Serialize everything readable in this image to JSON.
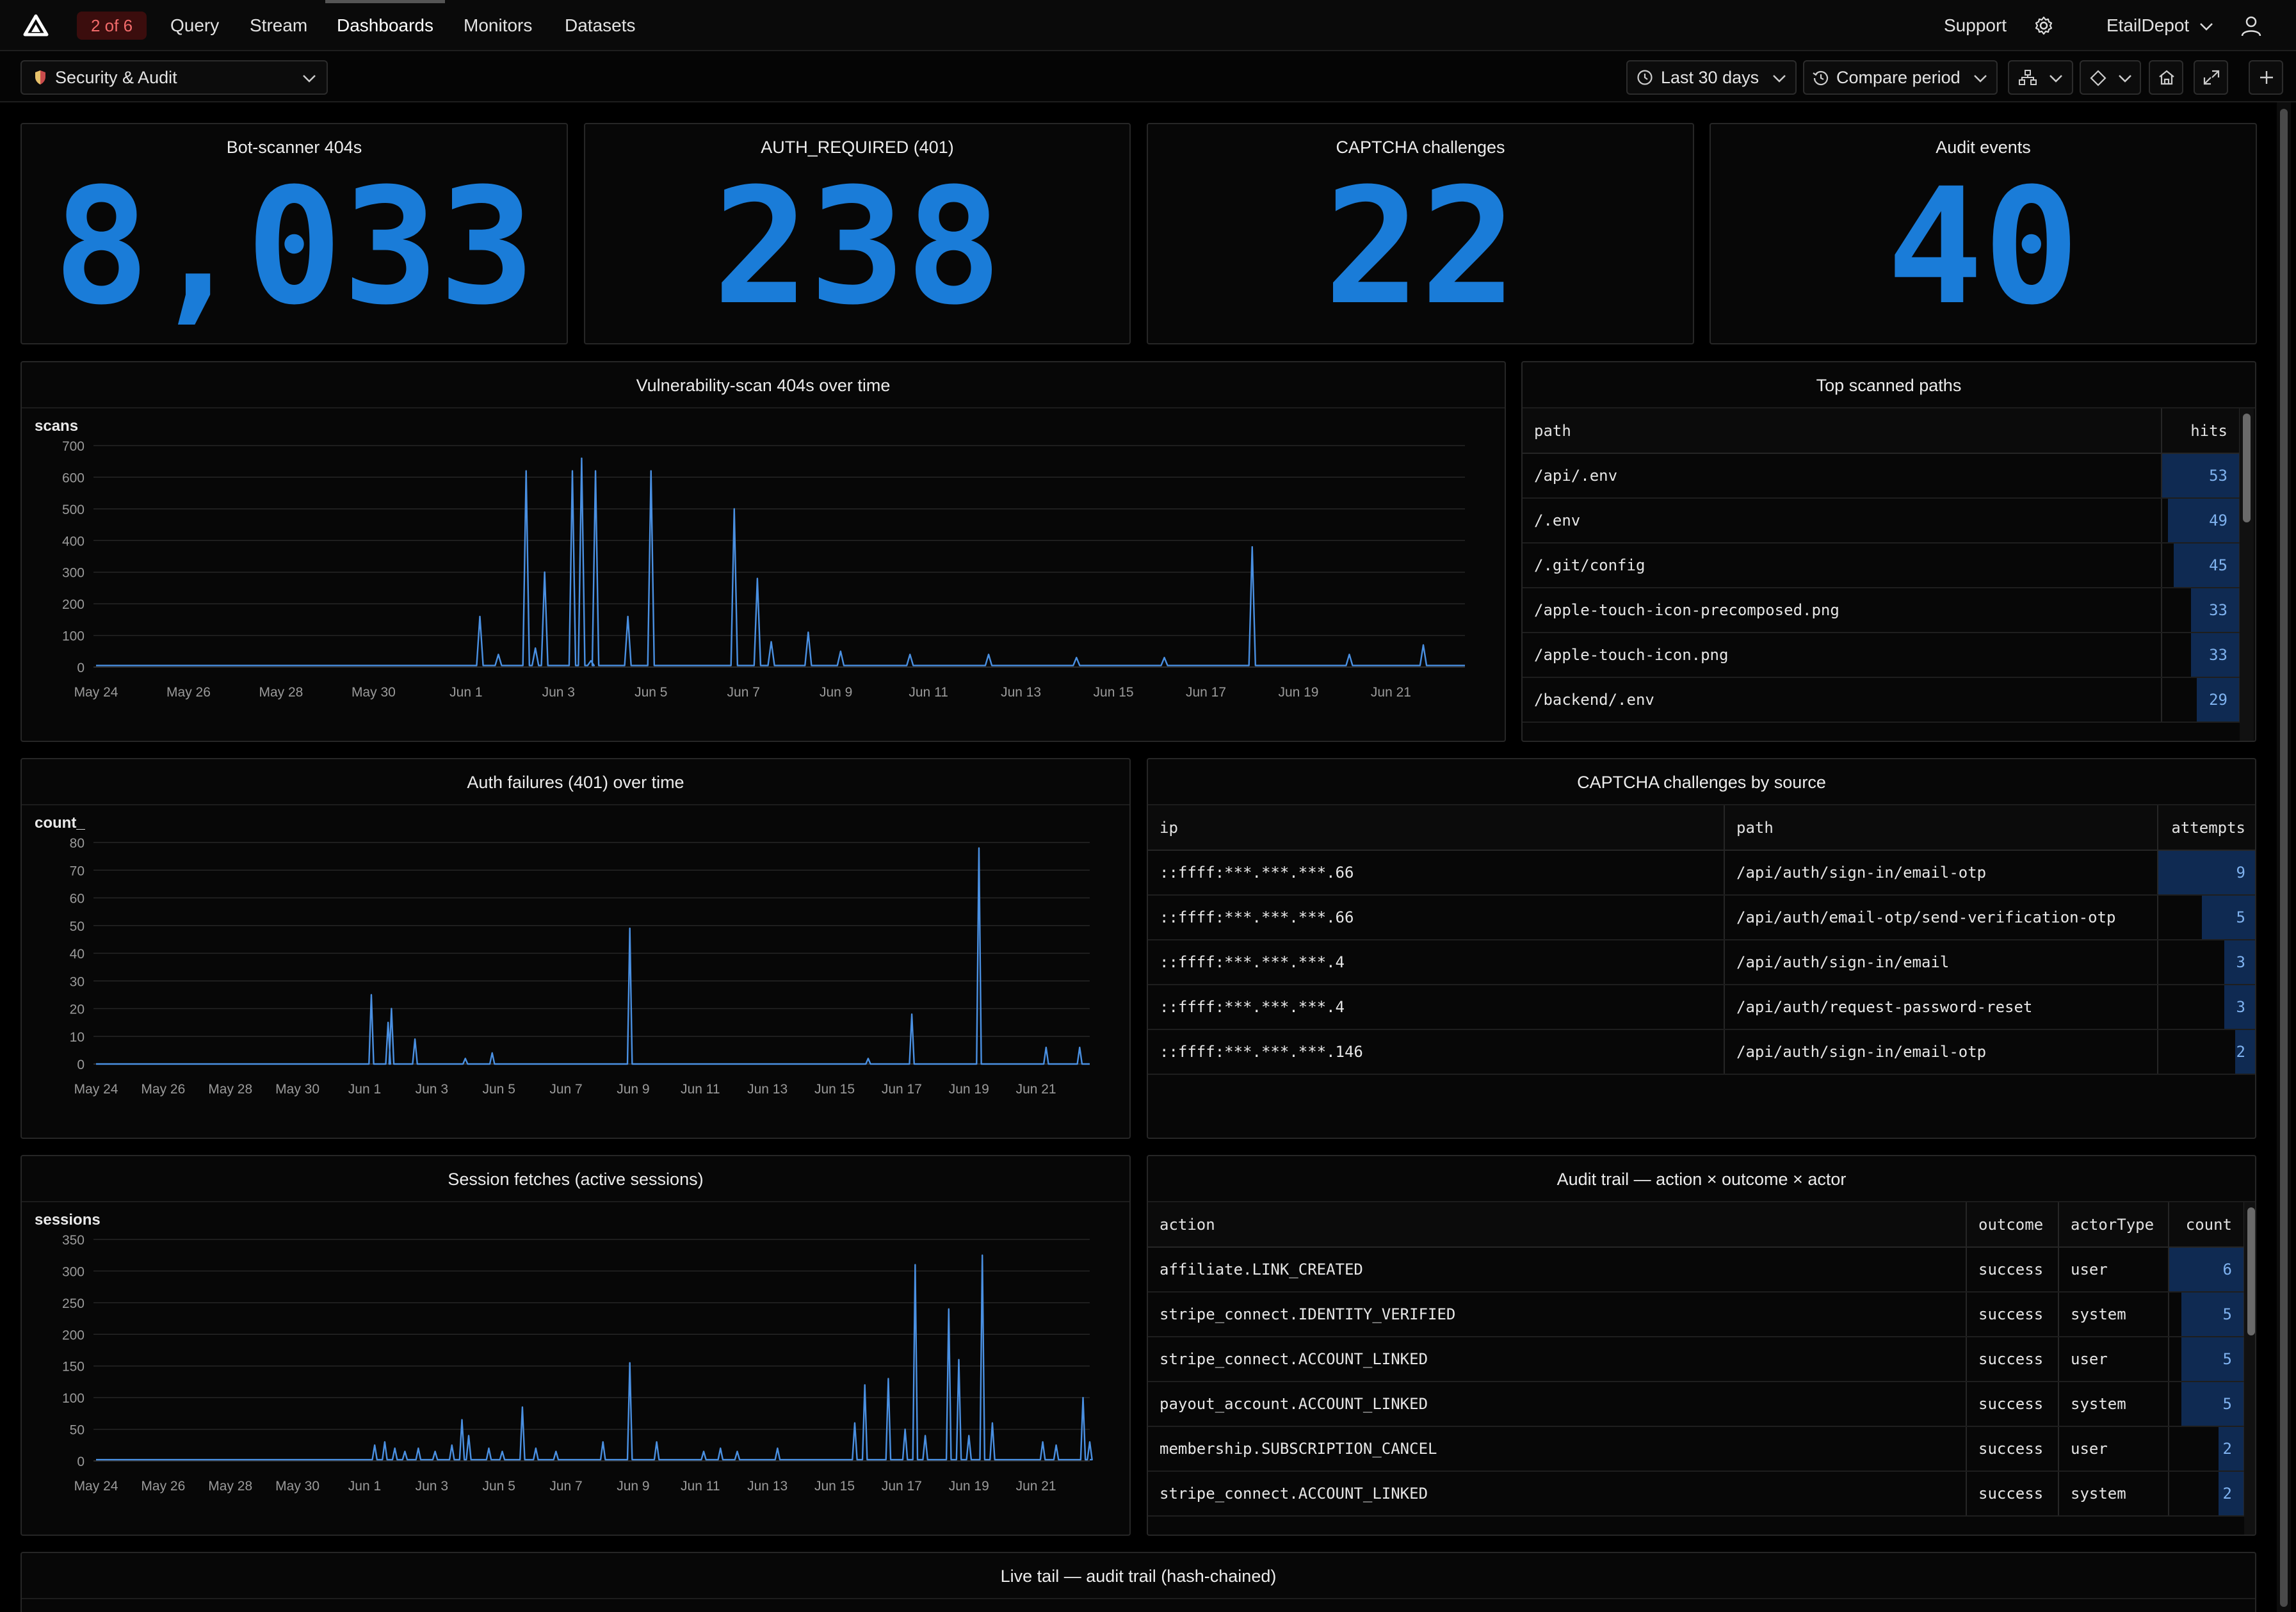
{
  "topnav": {
    "pager": "2 of 6",
    "items": [
      {
        "label": "Query"
      },
      {
        "label": "Stream"
      },
      {
        "label": "Dashboards"
      },
      {
        "label": "Monitors"
      },
      {
        "label": "Datasets"
      }
    ],
    "active": "Dashboards",
    "support": "Support",
    "org": "EtailDepot"
  },
  "toolbar": {
    "dashboard": "Security & Audit",
    "range": "Last 30 days",
    "compare": "Compare period"
  },
  "stats": [
    {
      "title": "Bot-scanner 404s",
      "value": "8,033"
    },
    {
      "title": "AUTH_REQUIRED (401)",
      "value": "238"
    },
    {
      "title": "CAPTCHA challenges",
      "value": "22"
    },
    {
      "title": "Audit events",
      "value": "40"
    }
  ],
  "colors": {
    "accent": "#1a7cd8",
    "line": "#4a90e2",
    "bar": "#0f2a52",
    "pager_bg": "#3b0d0d",
    "pager_fg": "#f26b6b"
  },
  "chart_data": [
    {
      "type": "line",
      "title": "Vulnerability-scan 404s over time",
      "ylabel": "scans",
      "xlabel": "",
      "x_ticks": [
        "May 24",
        "May 26",
        "May 28",
        "May 30",
        "Jun 1",
        "Jun 3",
        "Jun 5",
        "Jun 7",
        "Jun 9",
        "Jun 11",
        "Jun 13",
        "Jun 15",
        "Jun 17",
        "Jun 19",
        "Jun 21"
      ],
      "y_ticks": [
        0,
        100,
        200,
        300,
        400,
        500,
        600,
        700
      ],
      "ylim": [
        0,
        700
      ],
      "x_range": [
        0,
        29.6
      ],
      "grid": true,
      "spikes": [
        [
          8.3,
          160
        ],
        [
          8.7,
          40
        ],
        [
          9.3,
          620
        ],
        [
          9.5,
          60
        ],
        [
          9.7,
          300
        ],
        [
          10.3,
          620
        ],
        [
          10.5,
          660
        ],
        [
          10.7,
          20
        ],
        [
          10.8,
          620
        ],
        [
          11.5,
          160
        ],
        [
          12.0,
          620
        ],
        [
          13.8,
          500
        ],
        [
          14.3,
          280
        ],
        [
          14.6,
          80
        ],
        [
          15.4,
          110
        ],
        [
          16.1,
          50
        ],
        [
          17.6,
          40
        ],
        [
          19.3,
          40
        ],
        [
          21.2,
          30
        ],
        [
          23.1,
          30
        ],
        [
          25.0,
          380
        ],
        [
          27.1,
          40
        ],
        [
          28.7,
          70
        ]
      ],
      "baseline": 5
    },
    {
      "type": "line",
      "title": "Auth failures (401) over time",
      "ylabel": "count_",
      "xlabel": "",
      "x_ticks": [
        "May 24",
        "May 26",
        "May 28",
        "May 30",
        "Jun 1",
        "Jun 3",
        "Jun 5",
        "Jun 7",
        "Jun 9",
        "Jun 11",
        "Jun 13",
        "Jun 15",
        "Jun 17",
        "Jun 19",
        "Jun 21"
      ],
      "y_ticks": [
        0,
        10,
        20,
        30,
        40,
        50,
        60,
        70,
        80
      ],
      "ylim": [
        0,
        80
      ],
      "x_range": [
        0,
        29.6
      ],
      "grid": true,
      "spikes": [
        [
          8.2,
          25
        ],
        [
          8.7,
          15
        ],
        [
          8.8,
          20
        ],
        [
          9.5,
          9
        ],
        [
          11.0,
          2
        ],
        [
          11.8,
          4
        ],
        [
          15.9,
          49
        ],
        [
          23.0,
          2
        ],
        [
          24.3,
          18
        ],
        [
          26.3,
          78
        ],
        [
          28.3,
          6
        ],
        [
          29.3,
          6
        ]
      ],
      "baseline": 0
    },
    {
      "type": "line",
      "title": "Session fetches (active sessions)",
      "ylabel": "sessions",
      "xlabel": "",
      "x_ticks": [
        "May 24",
        "May 26",
        "May 28",
        "May 30",
        "Jun 1",
        "Jun 3",
        "Jun 5",
        "Jun 7",
        "Jun 9",
        "Jun 11",
        "Jun 13",
        "Jun 15",
        "Jun 17",
        "Jun 19",
        "Jun 21"
      ],
      "y_ticks": [
        0,
        50,
        100,
        150,
        200,
        250,
        300,
        350
      ],
      "ylim": [
        0,
        350
      ],
      "x_range": [
        0,
        29.6
      ],
      "grid": true,
      "spikes": [
        [
          8.3,
          25
        ],
        [
          8.6,
          30
        ],
        [
          8.9,
          20
        ],
        [
          9.2,
          15
        ],
        [
          9.6,
          20
        ],
        [
          10.1,
          15
        ],
        [
          10.6,
          25
        ],
        [
          10.9,
          65
        ],
        [
          11.1,
          40
        ],
        [
          11.7,
          20
        ],
        [
          12.1,
          15
        ],
        [
          12.7,
          85
        ],
        [
          13.1,
          20
        ],
        [
          13.7,
          15
        ],
        [
          15.1,
          30
        ],
        [
          15.9,
          155
        ],
        [
          16.7,
          30
        ],
        [
          18.1,
          15
        ],
        [
          18.6,
          20
        ],
        [
          19.1,
          15
        ],
        [
          20.3,
          20
        ],
        [
          22.6,
          60
        ],
        [
          22.9,
          120
        ],
        [
          23.6,
          130
        ],
        [
          24.1,
          50
        ],
        [
          24.4,
          310
        ],
        [
          24.7,
          40
        ],
        [
          25.4,
          240
        ],
        [
          25.7,
          160
        ],
        [
          26.0,
          40
        ],
        [
          26.4,
          325
        ],
        [
          26.7,
          60
        ],
        [
          28.2,
          30
        ],
        [
          28.6,
          25
        ],
        [
          29.4,
          100
        ],
        [
          29.6,
          30
        ]
      ],
      "baseline": 2
    }
  ],
  "top_paths": {
    "title": "Top scanned paths",
    "columns": [
      "path",
      "hits"
    ],
    "max": 53,
    "rows": [
      {
        "path": "/api/.env",
        "hits": "53"
      },
      {
        "path": "/.env",
        "hits": "49"
      },
      {
        "path": "/.git/config",
        "hits": "45"
      },
      {
        "path": "/apple-touch-icon-precomposed.png",
        "hits": "33"
      },
      {
        "path": "/apple-touch-icon.png",
        "hits": "33"
      },
      {
        "path": "/backend/.env",
        "hits": "29"
      }
    ]
  },
  "captcha": {
    "title": "CAPTCHA challenges by source",
    "columns": [
      "ip",
      "path",
      "attempts"
    ],
    "max": 9,
    "rows": [
      {
        "ip": "::ffff:***.***.***.66",
        "path": "/api/auth/sign-in/email-otp",
        "attempts": "9"
      },
      {
        "ip": "::ffff:***.***.***.66",
        "path": "/api/auth/email-otp/send-verification-otp",
        "attempts": "5"
      },
      {
        "ip": "::ffff:***.***.***.4",
        "path": "/api/auth/sign-in/email",
        "attempts": "3"
      },
      {
        "ip": "::ffff:***.***.***.4",
        "path": "/api/auth/request-password-reset",
        "attempts": "3"
      },
      {
        "ip": "::ffff:***.***.***.146",
        "path": "/api/auth/sign-in/email-otp",
        "attempts": "2"
      }
    ]
  },
  "audit": {
    "title": "Audit trail — action × outcome × actor",
    "columns": [
      "action",
      "outcome",
      "actorType",
      "count"
    ],
    "max": 6,
    "rows": [
      {
        "action": "affiliate.LINK_CREATED",
        "outcome": "success",
        "actor": "user",
        "count": "6"
      },
      {
        "action": "stripe_connect.IDENTITY_VERIFIED",
        "outcome": "success",
        "actor": "system",
        "count": "5"
      },
      {
        "action": "stripe_connect.ACCOUNT_LINKED",
        "outcome": "success",
        "actor": "user",
        "count": "5"
      },
      {
        "action": "payout_account.ACCOUNT_LINKED",
        "outcome": "success",
        "actor": "system",
        "count": "5"
      },
      {
        "action": "membership.SUBSCRIPTION_CANCEL",
        "outcome": "success",
        "actor": "user",
        "count": "2"
      },
      {
        "action": "stripe_connect.ACCOUNT_LINKED",
        "outcome": "success",
        "actor": "system",
        "count": "2"
      }
    ]
  },
  "live_tail": {
    "title": "Live tail — audit trail (hash-chained)"
  }
}
